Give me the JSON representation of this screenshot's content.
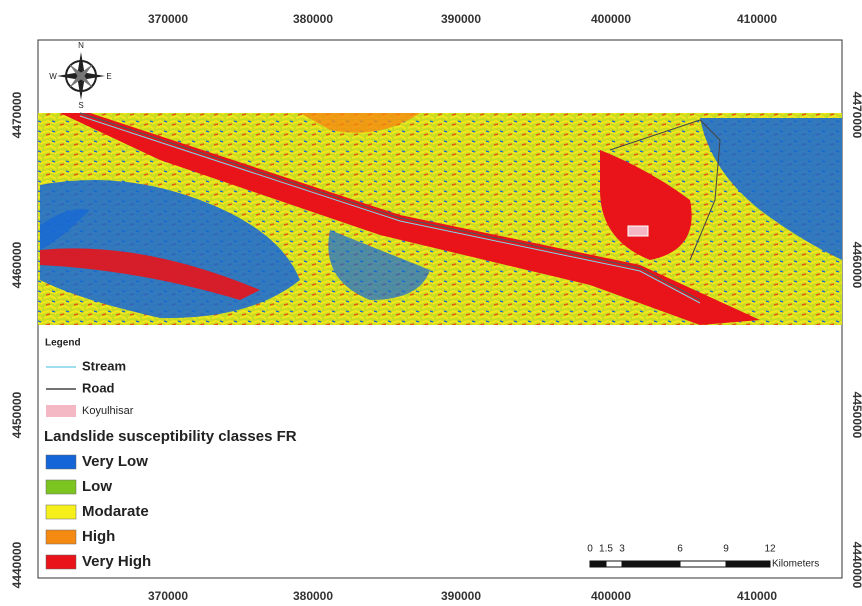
{
  "axes": {
    "top": [
      "370000",
      "380000",
      "390000",
      "400000",
      "410000"
    ],
    "bottom": [
      "370000",
      "380000",
      "390000",
      "400000",
      "410000"
    ],
    "left": [
      "4470000",
      "4460000",
      "4450000",
      "4440000"
    ],
    "right": [
      "4470000",
      "4460000",
      "4450000",
      "4440000"
    ]
  },
  "compass": {
    "n": "N",
    "s": "S",
    "e": "E",
    "w": "W"
  },
  "legend": {
    "title": "Legend",
    "items": [
      {
        "label": "Stream",
        "color": "#7fd4ea"
      },
      {
        "label": "Road",
        "color": "#444444"
      },
      {
        "label": "Koyulhisar",
        "color": "#f4b8c4"
      }
    ],
    "classes_title": "Landslide susceptibility classes FR",
    "classes": [
      {
        "label": "Very Low",
        "color": "#1466d8"
      },
      {
        "label": "Low",
        "color": "#7cc520"
      },
      {
        "label": "Modarate",
        "color": "#f5f01c"
      },
      {
        "label": "High",
        "color": "#f58a12"
      },
      {
        "label": "Very High",
        "color": "#e8141a"
      }
    ]
  },
  "scale": {
    "labels": [
      "0",
      "1.5",
      "3",
      "6",
      "9",
      "12"
    ],
    "unit": "Kilometers"
  }
}
